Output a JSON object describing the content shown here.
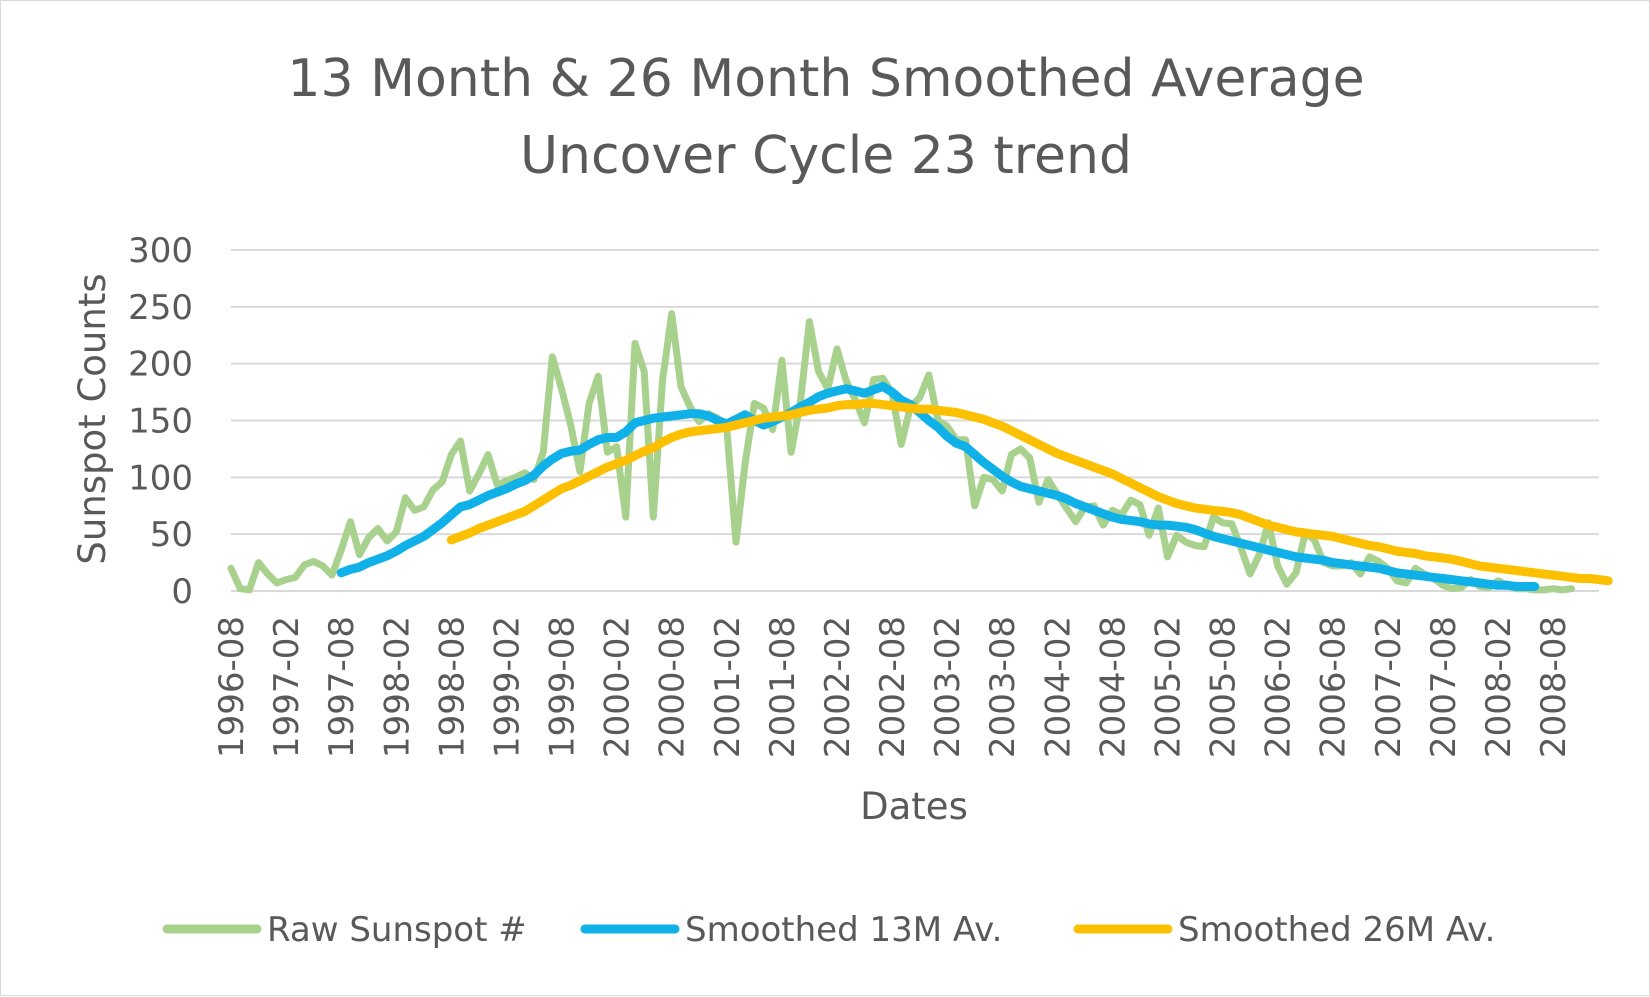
{
  "chart_data": {
    "type": "line",
    "title_lines": [
      "13 Month & 26 Month Smoothed Average",
      "Uncover Cycle 23 trend"
    ],
    "xlabel": "Dates",
    "ylabel": "Sunspot Counts",
    "ylim": [
      0,
      300
    ],
    "yticks": [
      0,
      50,
      100,
      150,
      200,
      250,
      300
    ],
    "ytick_labels": [
      "0",
      "50",
      "100",
      "150",
      "200",
      "250",
      "300"
    ],
    "x_start": "1996-08",
    "x_end": "2009-01",
    "x_tick_labels": [
      "1996-08",
      "1997-02",
      "1997-08",
      "1998-02",
      "1998-08",
      "1999-02",
      "1999-08",
      "2000-02",
      "2000-08",
      "2001-02",
      "2001-08",
      "2002-02",
      "2002-08",
      "2003-02",
      "2003-08",
      "2004-02",
      "2004-08",
      "2005-02",
      "2005-08",
      "2006-02",
      "2006-08",
      "2007-02",
      "2007-08",
      "2008-02",
      "2008-08"
    ],
    "grid": true,
    "legend_position": "bottom",
    "series": [
      {
        "name": "Raw Sunspot #",
        "color": "#a9d18e",
        "start": "1996-08",
        "values": [
          20,
          2,
          1,
          25,
          15,
          7,
          10,
          12,
          23,
          26,
          22,
          14,
          36,
          61,
          32,
          47,
          55,
          44,
          52,
          82,
          71,
          74,
          89,
          96,
          120,
          132,
          88,
          103,
          120,
          93,
          97,
          100,
          104,
          98,
          122,
          206,
          178,
          146,
          105,
          165,
          189,
          122,
          127,
          65,
          218,
          193,
          65,
          185,
          244,
          180,
          162,
          149,
          156,
          152,
          143,
          43,
          112,
          165,
          161,
          142,
          203,
          122,
          165,
          237,
          193,
          178,
          213,
          185,
          168,
          148,
          186,
          187,
          174,
          129,
          162,
          170,
          190,
          150,
          145,
          133,
          133,
          75,
          100,
          98,
          88,
          120,
          125,
          117,
          78,
          98,
          85,
          73,
          61,
          74,
          75,
          58,
          71,
          67,
          80,
          76,
          49,
          73,
          30,
          49,
          43,
          40,
          39,
          65,
          60,
          59,
          38,
          15,
          32,
          60,
          22,
          6,
          16,
          51,
          45,
          25,
          22,
          22,
          25,
          15,
          30,
          26,
          20,
          9,
          7,
          20,
          15,
          11,
          5,
          2,
          3,
          10,
          4,
          3,
          9,
          5,
          2,
          2,
          1,
          1,
          2,
          1,
          2
        ]
      },
      {
        "name": "Smoothed 13M Av.",
        "color": "#0fb1e8",
        "start": "1997-08",
        "values": [
          16,
          19,
          21,
          25,
          28,
          31,
          35,
          40,
          44,
          48,
          54,
          60,
          67,
          74,
          76,
          80,
          84,
          87,
          90,
          94,
          97,
          102,
          110,
          116,
          121,
          123,
          124,
          129,
          133,
          135,
          135,
          140,
          148,
          150,
          152,
          153,
          154,
          155,
          156,
          156,
          154,
          150,
          147,
          151,
          155,
          150,
          146,
          149,
          153,
          157,
          162,
          166,
          171,
          174,
          176,
          178,
          176,
          174,
          177,
          180,
          175,
          168,
          164,
          157,
          150,
          144,
          136,
          130,
          127,
          120,
          113,
          107,
          101,
          96,
          92,
          90,
          88,
          86,
          84,
          81,
          77,
          74,
          71,
          68,
          65,
          63,
          62,
          61,
          59,
          58,
          58,
          57,
          56,
          54,
          51,
          48,
          46,
          44,
          42,
          40,
          38,
          36,
          34,
          32,
          30,
          29,
          28,
          27,
          25,
          24,
          23,
          22,
          21,
          20,
          18,
          16,
          15,
          14,
          13,
          12,
          11,
          10,
          9,
          8,
          7,
          6,
          5,
          5,
          4,
          4,
          4
        ]
      },
      {
        "name": "Smoothed 26M Av.",
        "color": "#fcc000",
        "start": "1998-08",
        "values": [
          45,
          48,
          51,
          55,
          58,
          61,
          64,
          67,
          70,
          75,
          80,
          85,
          90,
          93,
          97,
          101,
          105,
          109,
          112,
          115,
          119,
          123,
          126,
          131,
          135,
          138,
          140,
          141,
          142,
          143,
          144,
          146,
          148,
          150,
          152,
          153,
          154,
          155,
          157,
          159,
          160,
          161,
          163,
          164,
          164,
          165,
          165,
          164,
          163,
          162,
          161,
          160,
          160,
          159,
          158,
          157,
          155,
          153,
          151,
          148,
          145,
          141,
          137,
          133,
          129,
          125,
          121,
          118,
          115,
          112,
          109,
          106,
          103,
          99,
          95,
          91,
          87,
          83,
          80,
          77,
          75,
          73,
          72,
          71,
          70,
          69,
          67,
          64,
          61,
          58,
          56,
          54,
          52,
          51,
          50,
          49,
          48,
          46,
          44,
          42,
          40,
          39,
          37,
          35,
          34,
          33,
          31,
          30,
          29,
          28,
          26,
          24,
          22,
          21,
          20,
          19,
          18,
          17,
          16,
          15,
          14,
          13,
          12,
          11,
          11,
          10,
          9
        ]
      }
    ]
  }
}
